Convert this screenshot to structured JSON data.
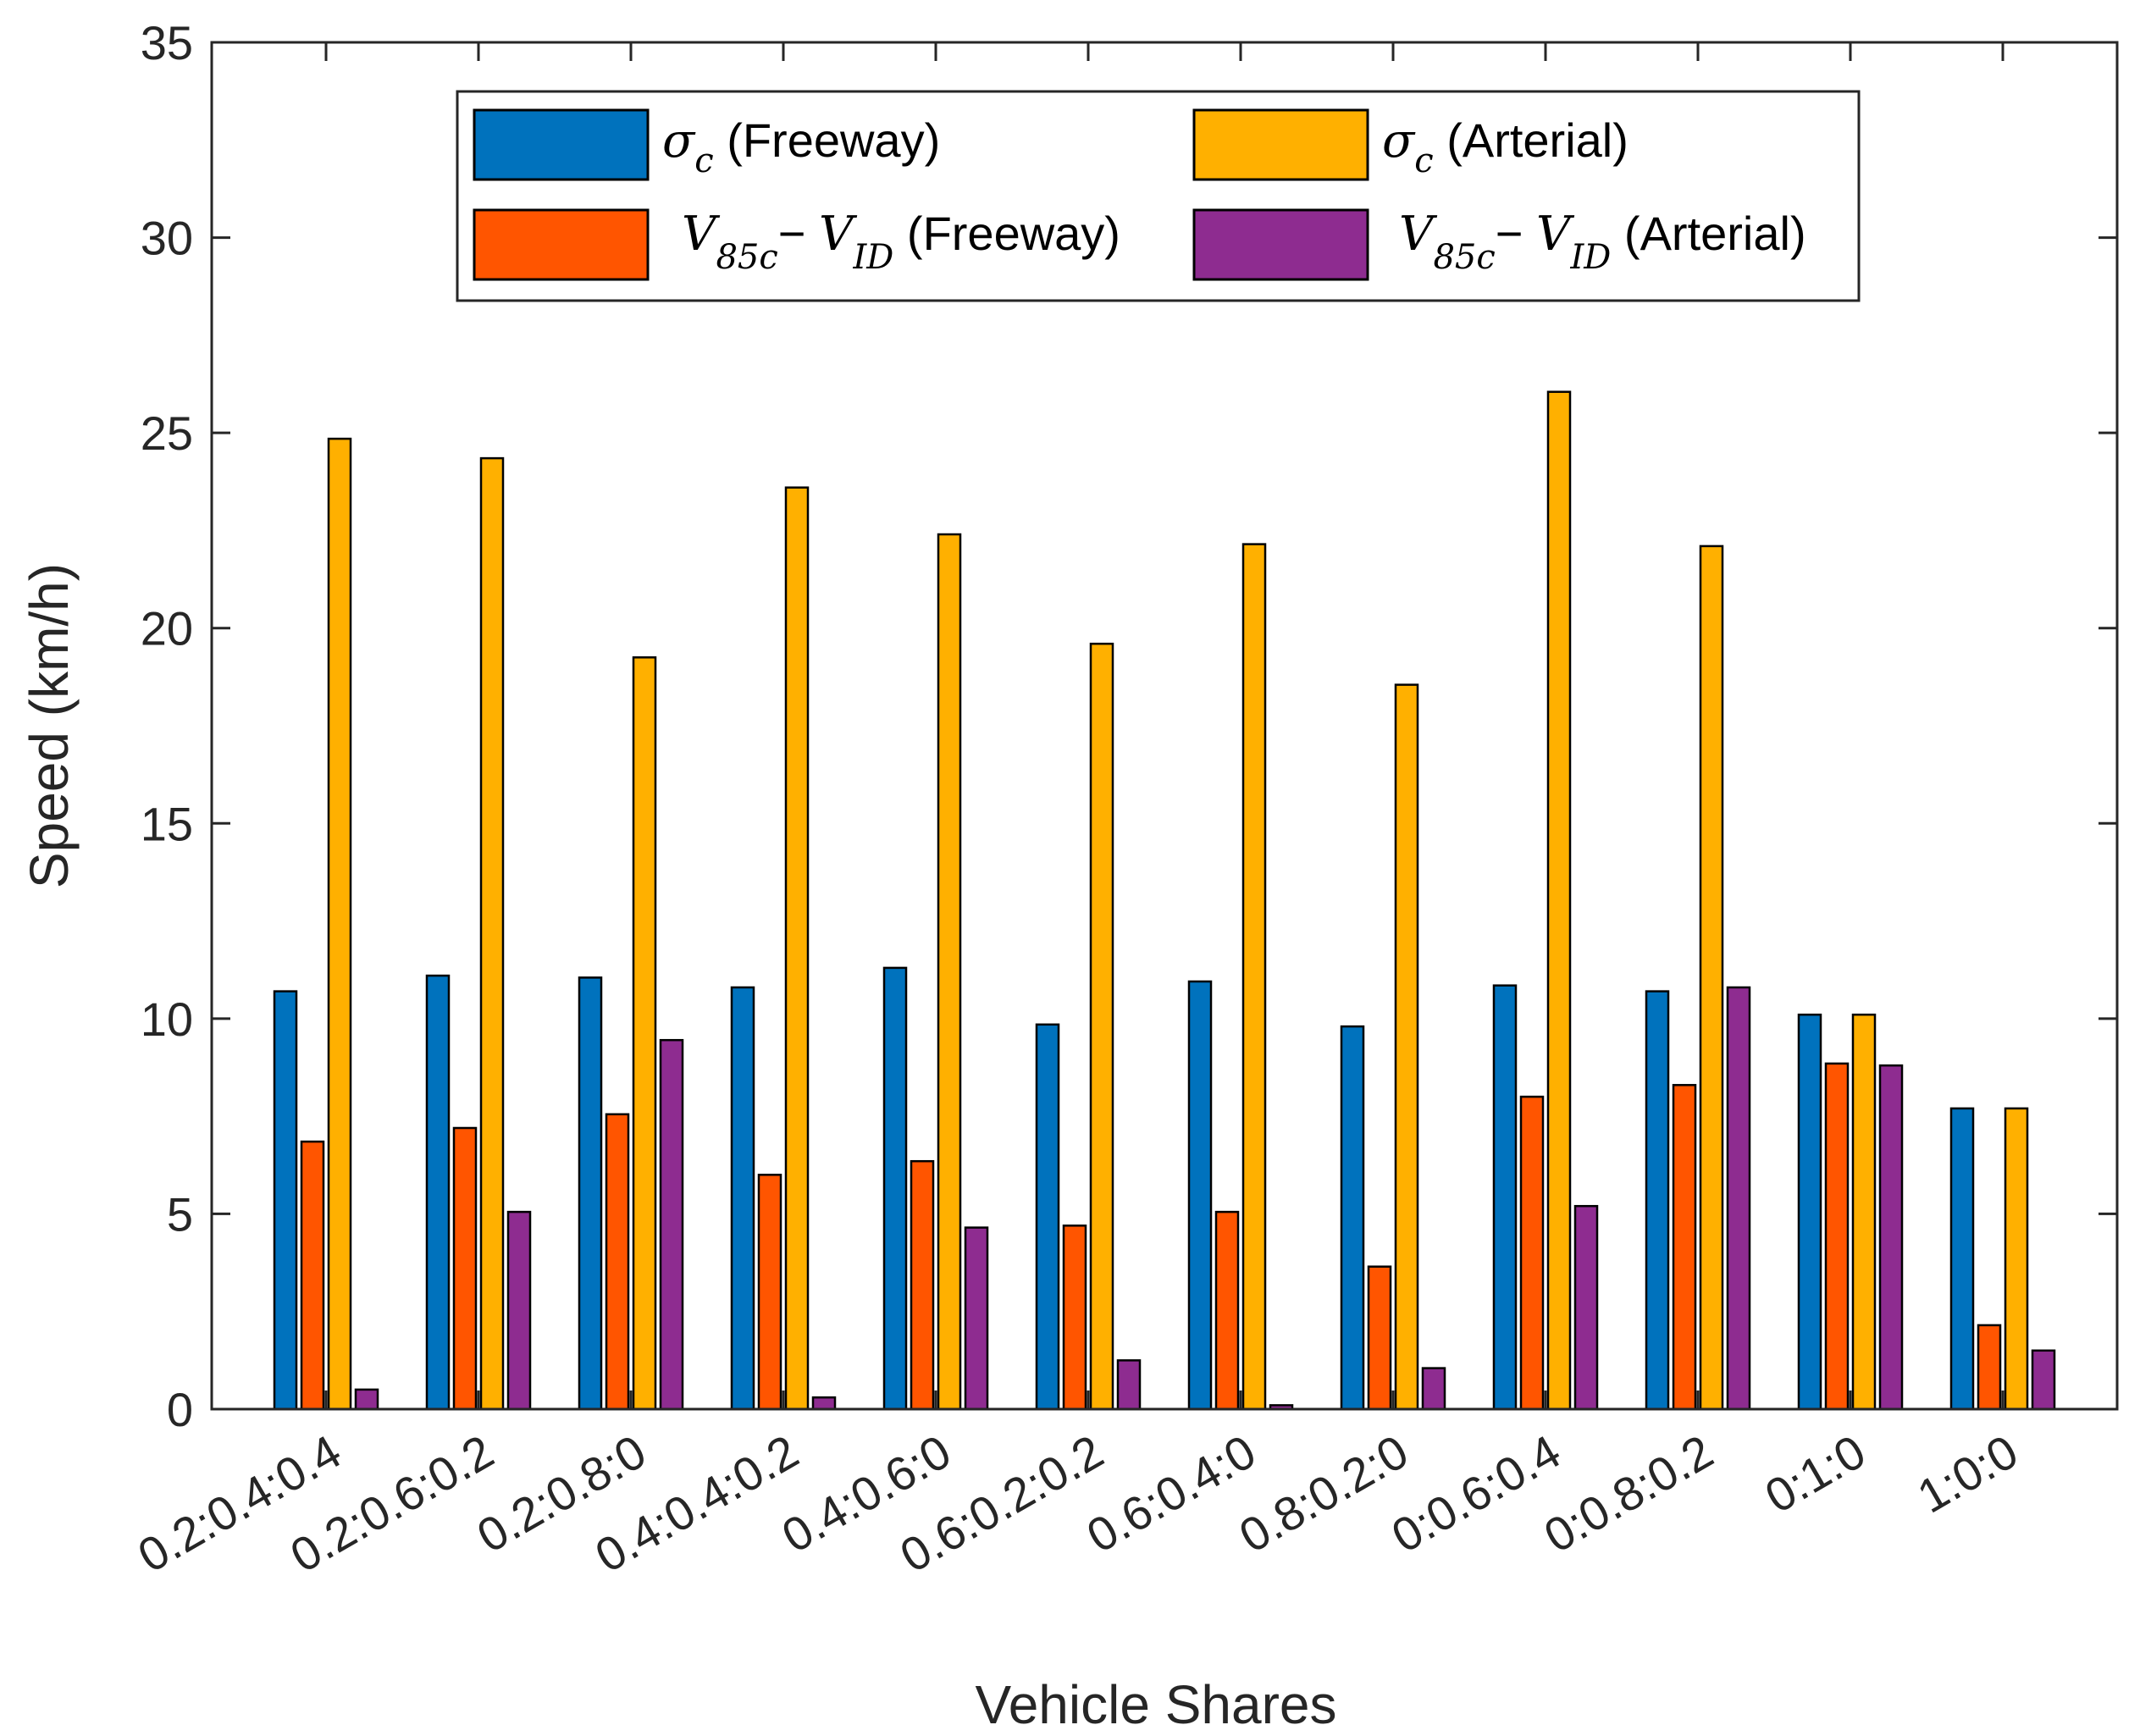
{
  "chart_data": {
    "type": "bar",
    "xlabel": "Vehicle Shares",
    "ylabel": "Speed (km/h)",
    "ylim": [
      0,
      35
    ],
    "yticks": [
      0,
      5,
      10,
      15,
      20,
      25,
      30,
      35
    ],
    "grid": false,
    "legend_position": "top-center",
    "categories": [
      "0.2:0.4:0.4",
      "0.2:0.6:0.2",
      "0.2:0.8:0",
      "0.4:0.4:0.2",
      "0.4:0.6:0",
      "0.6:0.2:0.2",
      "0.6:0.4:0",
      "0.8:0.2:0",
      "0:0.6:0.4",
      "0:0.8:0.2",
      "0:1:0",
      "1:0:0"
    ],
    "series": [
      {
        "name": "σc (Freeway)",
        "legend": {
          "symbol": "σ",
          "sub": "c",
          "rest": " (Freeway)"
        },
        "color": "#0072BD",
        "values": [
          10.7,
          11.1,
          11.05,
          10.8,
          11.3,
          9.85,
          10.95,
          9.8,
          10.85,
          10.7,
          10.1,
          7.7
        ]
      },
      {
        "name": "V85c − VID (Freeway)",
        "legend": {
          "v1": "V",
          "sub1": "85c",
          "op": "− ",
          "v2": "V",
          "sub2": "ID",
          "rest": " (Freeway)"
        },
        "color": "#FF5500",
        "values": [
          6.85,
          7.2,
          7.55,
          6.0,
          6.35,
          4.7,
          5.05,
          3.65,
          8.0,
          8.3,
          8.85,
          2.15
        ]
      },
      {
        "name": "σc (Arterial)",
        "legend": {
          "symbol": "σ",
          "sub": "c",
          "rest": " (Arterial)"
        },
        "color": "#FFB000",
        "values": [
          24.85,
          24.35,
          19.25,
          23.6,
          22.4,
          19.6,
          22.15,
          18.55,
          26.05,
          22.1,
          10.1,
          7.7
        ]
      },
      {
        "name": "V85c − VID (Arterial)",
        "legend": {
          "v1": "V",
          "sub1": "85c",
          "op": "− ",
          "v2": "V",
          "sub2": "ID",
          "rest": " (Arterial)"
        },
        "color": "#8E2C90",
        "values": [
          0.5,
          5.05,
          9.45,
          0.3,
          4.65,
          1.25,
          0.1,
          1.05,
          5.2,
          10.8,
          8.8,
          1.5
        ]
      }
    ]
  }
}
